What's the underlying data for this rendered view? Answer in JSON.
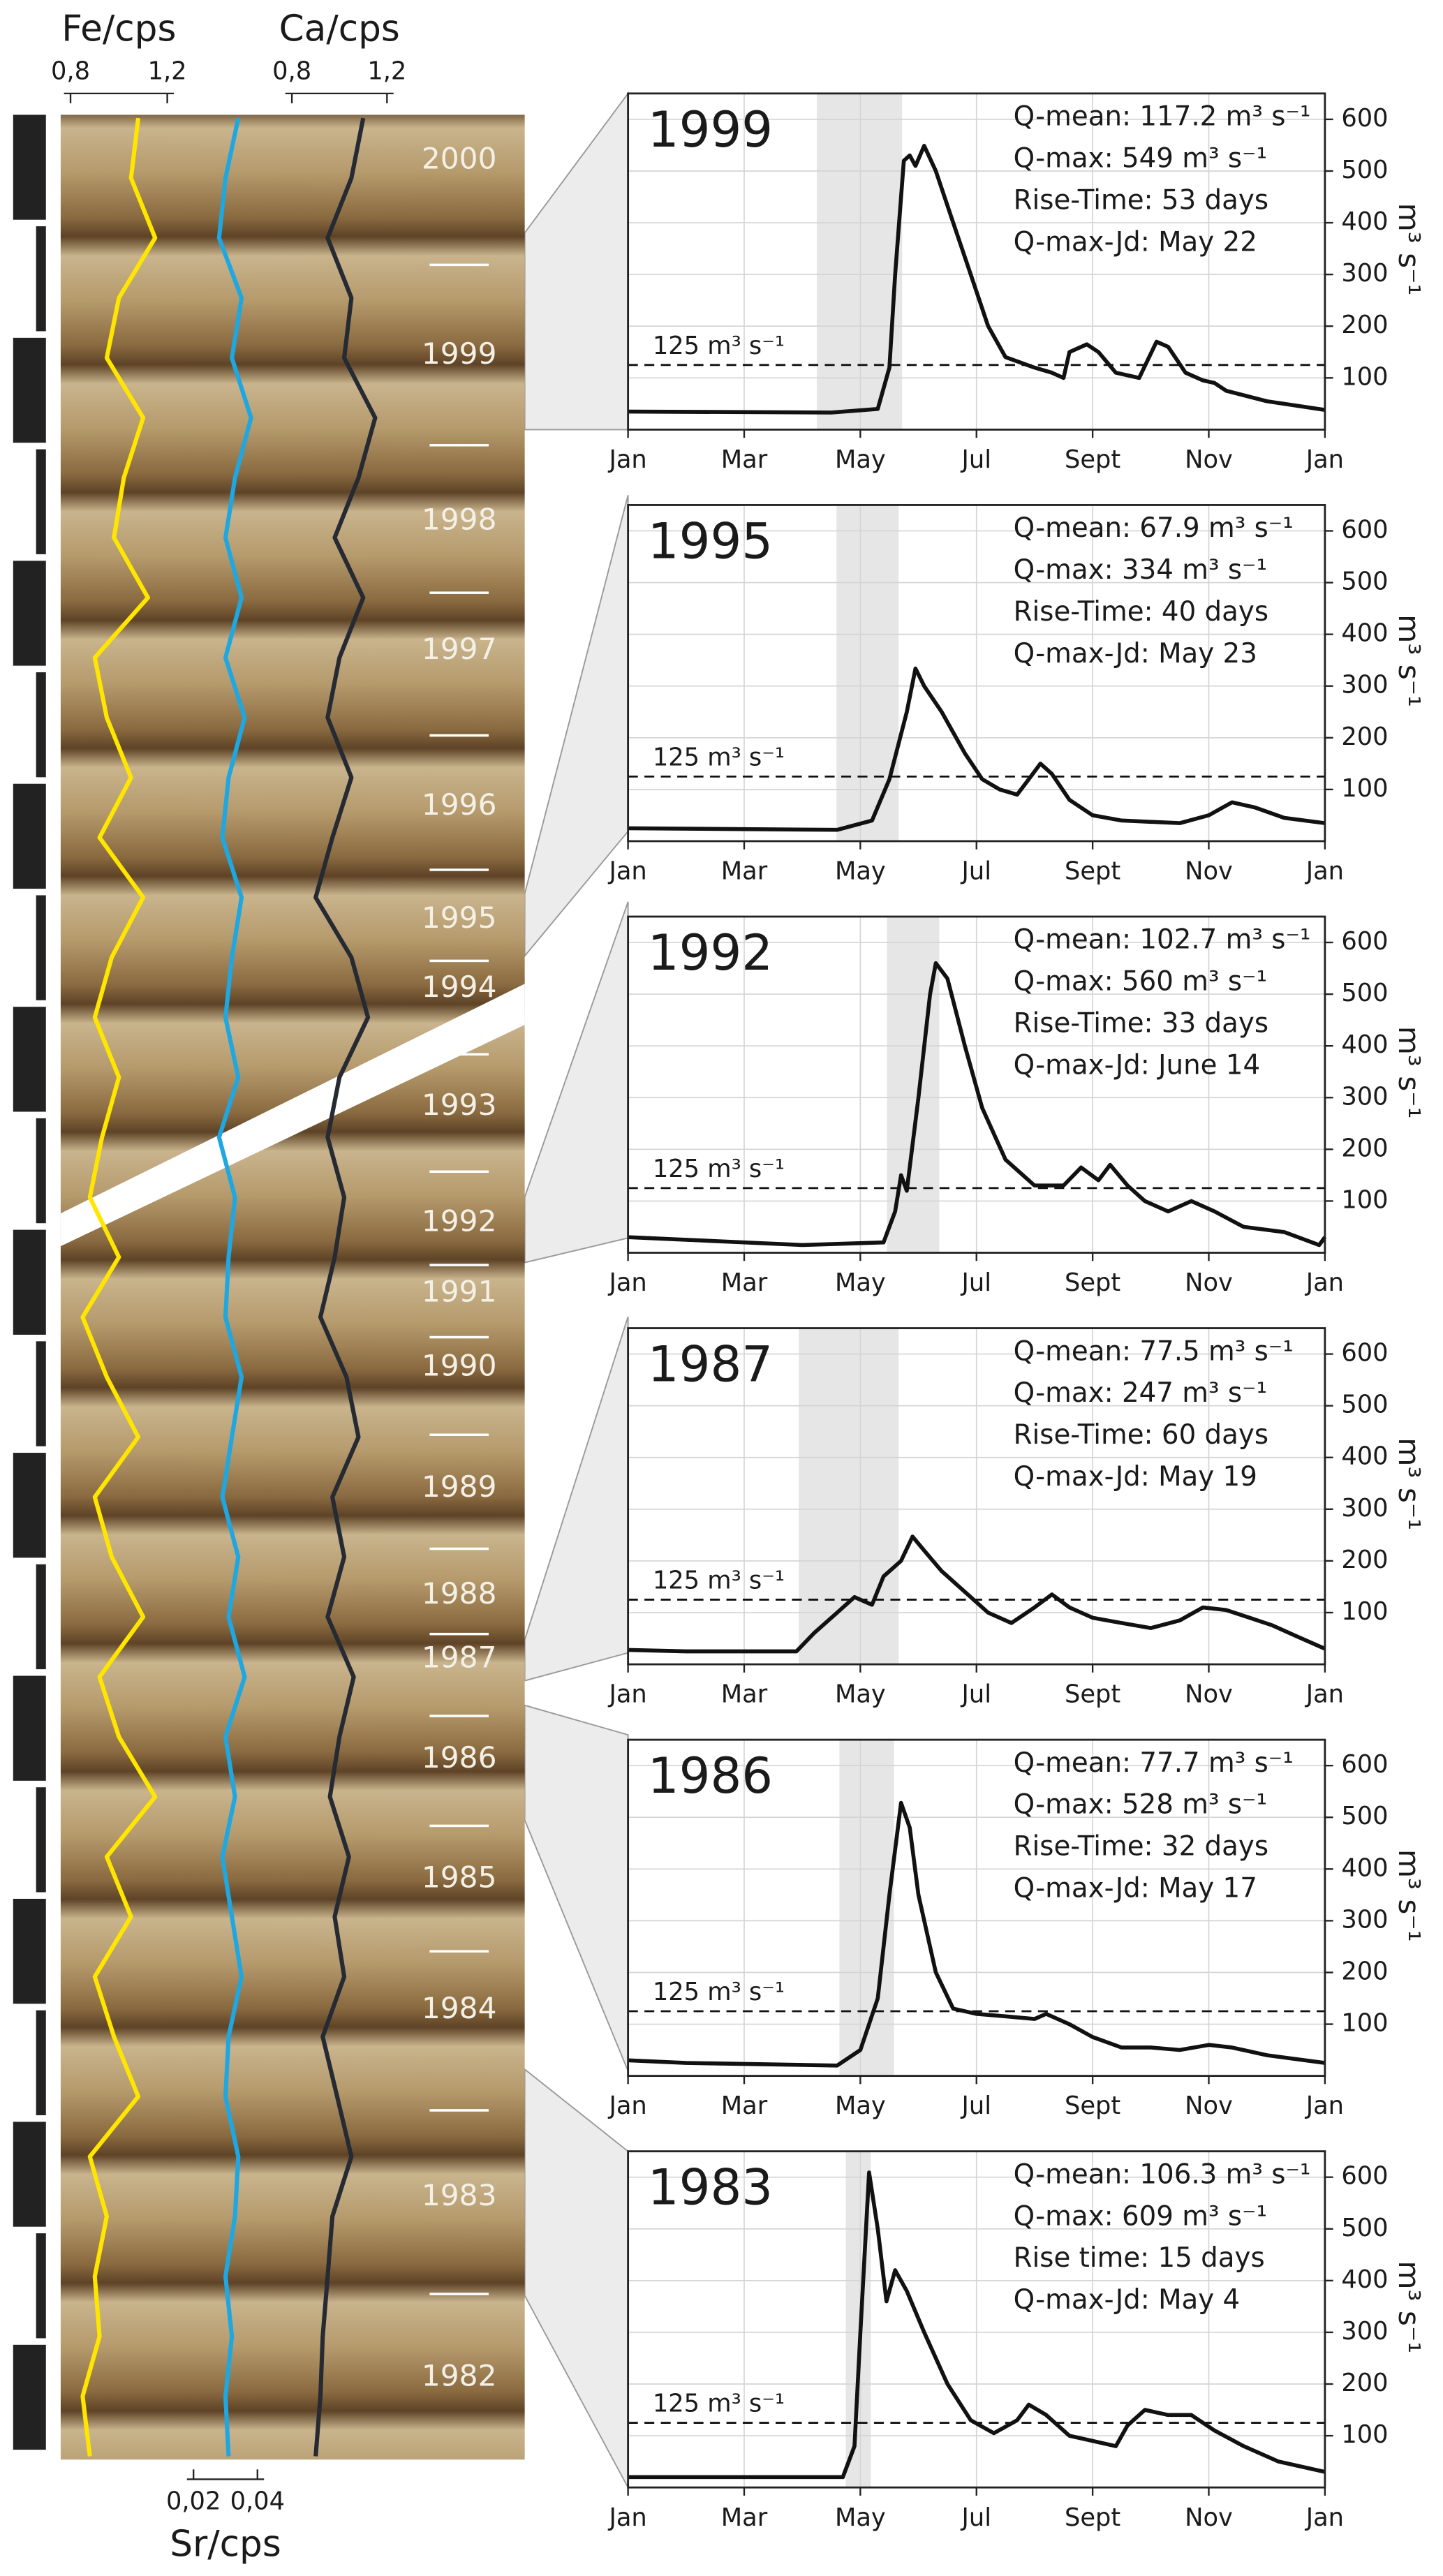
{
  "chart_data": [
    {
      "type": "profile",
      "series": [
        {
          "name": "Fe/cps",
          "color": "#ffe600",
          "xlim": [
            0.8,
            1.2
          ],
          "xticks": [
            {
              "value": 0.8,
              "label": "0,8"
            },
            {
              "value": 1.2,
              "label": "1,2"
            }
          ],
          "values": [
            1.08,
            1.05,
            1.15,
            1.0,
            0.95,
            1.1,
            1.02,
            0.98,
            1.12,
            0.9,
            0.95,
            1.05,
            0.92,
            1.1,
            0.97,
            0.9,
            1.0,
            0.93,
            0.88,
            1.0,
            0.85,
            0.95,
            1.08,
            0.9,
            0.97,
            1.1,
            0.92,
            1.0,
            1.15,
            0.95,
            1.05,
            0.9,
            0.98,
            1.08,
            0.88,
            0.95,
            0.9,
            0.92,
            0.85,
            0.88
          ]
        },
        {
          "name": "Sr/cps",
          "color": "#1ea7e1",
          "xlim": [
            0.02,
            0.04
          ],
          "xticks": [
            {
              "value": 0.02,
              "label": "0,02"
            },
            {
              "value": 0.04,
              "label": "0,04"
            }
          ],
          "values": [
            0.034,
            0.03,
            0.028,
            0.035,
            0.032,
            0.038,
            0.033,
            0.03,
            0.035,
            0.03,
            0.036,
            0.031,
            0.029,
            0.035,
            0.032,
            0.03,
            0.034,
            0.028,
            0.033,
            0.031,
            0.03,
            0.035,
            0.032,
            0.029,
            0.034,
            0.031,
            0.036,
            0.03,
            0.033,
            0.029,
            0.032,
            0.035,
            0.031,
            0.03,
            0.034,
            0.033,
            0.03,
            0.032,
            0.03,
            0.031
          ]
        },
        {
          "name": "Ca/cps",
          "color": "#262a33",
          "xlim": [
            0.8,
            1.2
          ],
          "xticks": [
            {
              "value": 0.8,
              "label": "0,8"
            },
            {
              "value": 1.2,
              "label": "1,2"
            }
          ],
          "values": [
            1.1,
            1.05,
            0.95,
            1.05,
            1.02,
            1.15,
            1.08,
            0.98,
            1.1,
            1.0,
            0.95,
            1.05,
            0.97,
            0.9,
            1.05,
            1.12,
            1.0,
            0.95,
            1.02,
            0.98,
            0.92,
            1.03,
            1.08,
            0.97,
            1.02,
            0.95,
            1.06,
            1.0,
            0.96,
            1.04,
            0.98,
            1.02,
            0.93,
            0.99,
            1.05,
            0.97,
            0.95,
            0.93,
            0.92,
            0.9
          ]
        }
      ],
      "year_labels": [
        "2000",
        "1999",
        "1998",
        "1997",
        "1996",
        "1995",
        "1994",
        "1993",
        "1992",
        "1991",
        "1990",
        "1989",
        "1988",
        "1987",
        "1986",
        "1985",
        "1984",
        "1983",
        "1982"
      ]
    },
    {
      "type": "line",
      "title": "1999",
      "color": "#111111",
      "annotations": [
        "Q-mean: 117.2 m³ s⁻¹",
        "Q-max: 549 m³ s⁻¹",
        "Rise-Time: 53 days",
        "Q-max-Jd: May 22"
      ],
      "x": [
        0,
        3.5,
        4.3,
        4.5,
        4.6,
        4.75,
        4.85,
        4.95,
        5.1,
        5.3,
        5.6,
        5.9,
        6.2,
        6.5,
        7,
        7.3,
        7.5,
        7.6,
        7.9,
        8.1,
        8.4,
        8.8,
        9.1,
        9.3,
        9.6,
        9.9,
        10.1,
        10.3,
        11,
        12
      ],
      "values": [
        35,
        33,
        40,
        120,
        300,
        520,
        530,
        510,
        549,
        500,
        400,
        300,
        200,
        140,
        120,
        110,
        100,
        150,
        165,
        150,
        110,
        100,
        170,
        160,
        110,
        95,
        90,
        75,
        55,
        38
      ],
      "shade": [
        3.25,
        4.72
      ],
      "threshold": 125,
      "threshold_label": "125 m³ s⁻¹",
      "ylabel": "m³ s⁻¹",
      "xlim": [
        0,
        12
      ],
      "xticks": [
        {
          "value": 0,
          "label": "Jan"
        },
        {
          "value": 2,
          "label": "Mar"
        },
        {
          "value": 4,
          "label": "May"
        },
        {
          "value": 6,
          "label": "Jul"
        },
        {
          "value": 8,
          "label": "Sept"
        },
        {
          "value": 10,
          "label": "Nov"
        },
        {
          "value": 12,
          "label": "Jan"
        }
      ],
      "ylim": [
        0,
        650
      ],
      "yticks": [
        100,
        200,
        300,
        400,
        500,
        600
      ],
      "grid": true
    },
    {
      "type": "line",
      "title": "1995",
      "color": "#111111",
      "annotations": [
        "Q-mean: 67.9  m³ s⁻¹",
        "Q-max: 334 m³ s⁻¹",
        "Rise-Time: 40 days",
        "Q-max-Jd: May 23"
      ],
      "x": [
        0,
        3.6,
        4.2,
        4.5,
        4.8,
        4.95,
        5.1,
        5.4,
        5.8,
        6.1,
        6.4,
        6.7,
        6.9,
        7.1,
        7.3,
        7.6,
        8,
        8.5,
        9.5,
        10,
        10.4,
        10.8,
        11.3,
        12
      ],
      "values": [
        25,
        22,
        40,
        120,
        250,
        334,
        300,
        250,
        170,
        120,
        100,
        90,
        120,
        150,
        130,
        80,
        50,
        40,
        35,
        50,
        75,
        65,
        45,
        35
      ],
      "shade": [
        3.59,
        4.66
      ],
      "threshold": 125,
      "threshold_label": "125 m³ s⁻¹",
      "ylabel": "m³ s⁻¹",
      "xlim": [
        0,
        12
      ],
      "xticks": [
        {
          "value": 0,
          "label": "Jan"
        },
        {
          "value": 2,
          "label": "Mar"
        },
        {
          "value": 4,
          "label": "May"
        },
        {
          "value": 6,
          "label": "Jul"
        },
        {
          "value": 8,
          "label": "Sept"
        },
        {
          "value": 10,
          "label": "Nov"
        },
        {
          "value": 12,
          "label": "Jan"
        }
      ],
      "ylim": [
        0,
        650
      ],
      "yticks": [
        100,
        200,
        300,
        400,
        500,
        600
      ],
      "grid": true
    },
    {
      "type": "line",
      "title": "1992",
      "color": "#111111",
      "annotations": [
        "Q-mean: 102.7 m³ s⁻¹",
        "Q-max: 560 m³ s⁻¹",
        "Rise-Time: 33 days",
        "Q-max-Jd: June 14"
      ],
      "x": [
        0,
        1,
        3,
        4.4,
        4.6,
        4.7,
        4.8,
        5,
        5.2,
        5.3,
        5.5,
        5.8,
        6.1,
        6.5,
        7,
        7.5,
        7.8,
        8.1,
        8.3,
        8.6,
        8.9,
        9.3,
        9.7,
        10.1,
        10.6,
        11.3,
        11.9,
        12
      ],
      "values": [
        30,
        25,
        15,
        20,
        80,
        150,
        120,
        300,
        500,
        560,
        530,
        400,
        280,
        180,
        130,
        130,
        165,
        140,
        170,
        130,
        100,
        80,
        100,
        80,
        50,
        40,
        15,
        30
      ],
      "shade": [
        4.46,
        5.36
      ],
      "threshold": 125,
      "threshold_label": "125 m³ s⁻¹",
      "ylabel": "m³ s⁻¹",
      "xlim": [
        0,
        12
      ],
      "xticks": [
        {
          "value": 0,
          "label": "Jan"
        },
        {
          "value": 2,
          "label": "Mar"
        },
        {
          "value": 4,
          "label": "May"
        },
        {
          "value": 6,
          "label": "Jul"
        },
        {
          "value": 8,
          "label": "Sept"
        },
        {
          "value": 10,
          "label": "Nov"
        },
        {
          "value": 12,
          "label": "Jan"
        }
      ],
      "ylim": [
        0,
        650
      ],
      "yticks": [
        100,
        200,
        300,
        400,
        500,
        600
      ],
      "grid": true
    },
    {
      "type": "line",
      "title": "1987",
      "color": "#111111",
      "annotations": [
        "Q-mean: 77.5 m³ s⁻¹",
        "Q-max: 247 m³ s⁻¹",
        "Rise-Time: 60 days",
        "Q-max-Jd: May 19"
      ],
      "x": [
        0,
        1,
        2.9,
        3.2,
        3.6,
        3.9,
        4.2,
        4.4,
        4.7,
        4.9,
        5.1,
        5.4,
        5.8,
        6.2,
        6.6,
        7,
        7.3,
        7.6,
        8,
        8.5,
        9,
        9.5,
        9.9,
        10.3,
        10.7,
        11.1,
        11.5,
        12
      ],
      "values": [
        28,
        25,
        25,
        60,
        100,
        130,
        115,
        170,
        200,
        247,
        220,
        180,
        140,
        100,
        80,
        110,
        135,
        110,
        90,
        80,
        70,
        85,
        110,
        105,
        90,
        75,
        55,
        30
      ],
      "shade": [
        2.94,
        4.66
      ],
      "threshold": 125,
      "threshold_label": "125 m³ s⁻¹",
      "ylabel": "m³ s⁻¹",
      "xlim": [
        0,
        12
      ],
      "xticks": [
        {
          "value": 0,
          "label": "Jan"
        },
        {
          "value": 2,
          "label": "Mar"
        },
        {
          "value": 4,
          "label": "May"
        },
        {
          "value": 6,
          "label": "Jul"
        },
        {
          "value": 8,
          "label": "Sept"
        },
        {
          "value": 10,
          "label": "Nov"
        },
        {
          "value": 12,
          "label": "Jan"
        }
      ],
      "ylim": [
        0,
        650
      ],
      "yticks": [
        100,
        200,
        300,
        400,
        500,
        600
      ],
      "grid": true
    },
    {
      "type": "line",
      "title": "1986",
      "color": "#111111",
      "annotations": [
        "Q-mean: 77.7 m³ s⁻¹",
        "Q-max: 528 m³ s⁻¹",
        "Rise-Time: 32 days",
        "Q-max-Jd: May 17"
      ],
      "x": [
        0,
        1,
        3.6,
        4,
        4.3,
        4.5,
        4.7,
        4.85,
        5,
        5.3,
        5.6,
        6,
        6.5,
        7,
        7.2,
        7.6,
        8,
        8.5,
        9,
        9.5,
        10,
        10.4,
        11,
        12
      ],
      "values": [
        30,
        25,
        20,
        50,
        150,
        350,
        528,
        480,
        350,
        200,
        130,
        120,
        115,
        110,
        120,
        100,
        75,
        55,
        55,
        50,
        60,
        55,
        40,
        25
      ],
      "shade": [
        3.64,
        4.58
      ],
      "threshold": 125,
      "threshold_label": "125 m³ s⁻¹",
      "ylabel": "m³ s⁻¹",
      "xlim": [
        0,
        12
      ],
      "xticks": [
        {
          "value": 0,
          "label": "Jan"
        },
        {
          "value": 2,
          "label": "Mar"
        },
        {
          "value": 4,
          "label": "May"
        },
        {
          "value": 6,
          "label": "Jul"
        },
        {
          "value": 8,
          "label": "Sept"
        },
        {
          "value": 10,
          "label": "Nov"
        },
        {
          "value": 12,
          "label": "Jan"
        }
      ],
      "ylim": [
        0,
        650
      ],
      "yticks": [
        100,
        200,
        300,
        400,
        500,
        600
      ],
      "grid": true
    },
    {
      "type": "line",
      "title": "1983",
      "color": "#111111",
      "annotations": [
        "Q-mean: 106.3 m³ s⁻¹",
        "Q-max: 609 m³ s⁻¹",
        "Rise time: 15 days",
        "Q-max-Jd: May 4"
      ],
      "x": [
        0,
        3.7,
        3.9,
        4,
        4.15,
        4.3,
        4.45,
        4.6,
        4.8,
        5.1,
        5.5,
        5.9,
        6.3,
        6.7,
        6.9,
        7.2,
        7.6,
        8,
        8.4,
        8.6,
        8.9,
        9.3,
        9.7,
        10.1,
        10.6,
        11.2,
        12
      ],
      "values": [
        20,
        20,
        80,
        300,
        609,
        500,
        360,
        420,
        380,
        300,
        200,
        130,
        105,
        130,
        160,
        140,
        100,
        90,
        80,
        120,
        150,
        140,
        140,
        110,
        80,
        50,
        30
      ],
      "shade": [
        3.75,
        4.18
      ],
      "threshold": 125,
      "threshold_label": "125 m³ s⁻¹",
      "ylabel": "m³ s⁻¹",
      "xlim": [
        0,
        12
      ],
      "xticks": [
        {
          "value": 0,
          "label": "Jan"
        },
        {
          "value": 2,
          "label": "Mar"
        },
        {
          "value": 4,
          "label": "May"
        },
        {
          "value": 6,
          "label": "Jul"
        },
        {
          "value": 8,
          "label": "Sept"
        },
        {
          "value": 10,
          "label": "Nov"
        },
        {
          "value": 12,
          "label": "Jan"
        }
      ],
      "ylim": [
        0,
        650
      ],
      "yticks": [
        100,
        200,
        300,
        400,
        500,
        600
      ],
      "grid": true
    }
  ]
}
